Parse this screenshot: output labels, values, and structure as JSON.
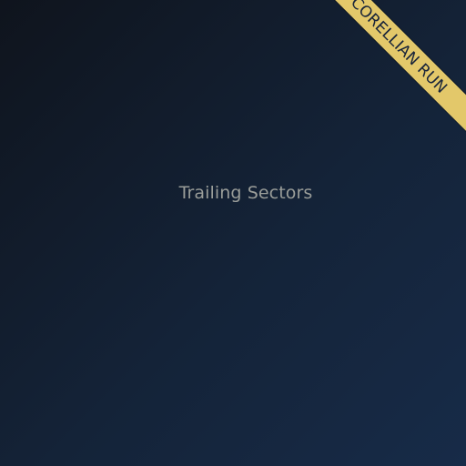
{
  "ribbon": {
    "label": "Corellian Run"
  },
  "main": {
    "empty_label": "Trailing Sectors"
  }
}
